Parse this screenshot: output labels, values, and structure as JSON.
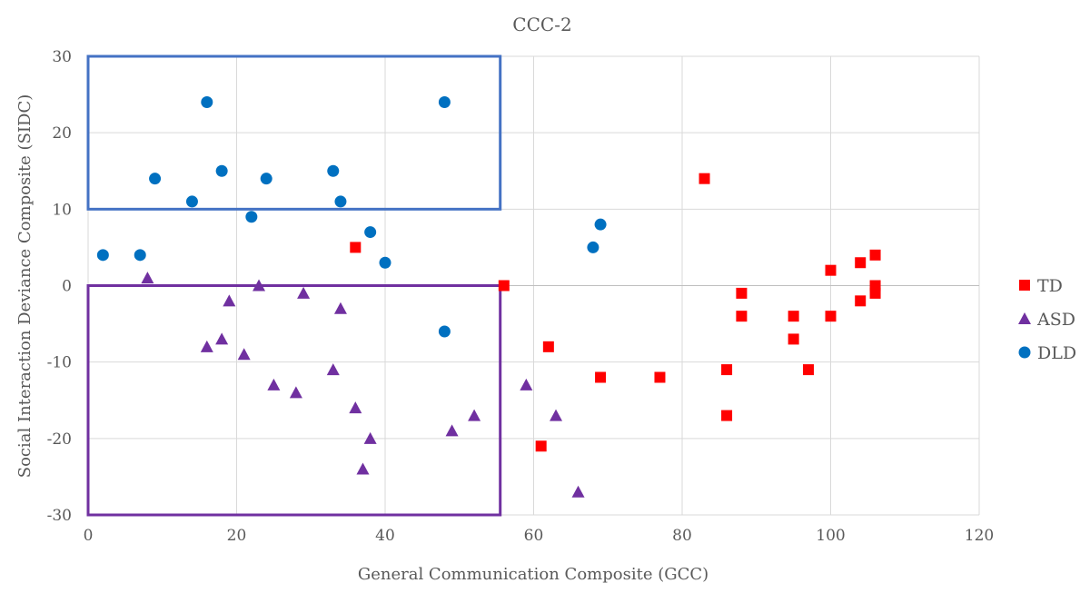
{
  "chart_data": {
    "type": "scatter",
    "title": "CCC-2",
    "xlabel": "General Communication Composite (GCC)",
    "ylabel": "Social Interaction Deviance Composite (SIDC)",
    "xlim": [
      0,
      120
    ],
    "ylim": [
      -30,
      30
    ],
    "xticks": [
      0,
      20,
      40,
      60,
      80,
      100,
      120
    ],
    "yticks": [
      -30,
      -20,
      -10,
      0,
      10,
      20,
      30
    ],
    "grid": true,
    "legend_position": "right",
    "series": [
      {
        "name": "TD",
        "marker": "square",
        "color": "#ff0000",
        "points": [
          [
            36,
            5
          ],
          [
            56,
            0
          ],
          [
            62,
            -8
          ],
          [
            61,
            -21
          ],
          [
            69,
            -12
          ],
          [
            77,
            -12
          ],
          [
            83,
            14
          ],
          [
            86,
            -11
          ],
          [
            86,
            -17
          ],
          [
            88,
            -1
          ],
          [
            88,
            -4
          ],
          [
            95,
            -4
          ],
          [
            95,
            -7
          ],
          [
            97,
            -11
          ],
          [
            100,
            2
          ],
          [
            100,
            -4
          ],
          [
            104,
            3
          ],
          [
            104,
            -2
          ],
          [
            106,
            4
          ],
          [
            106,
            0
          ],
          [
            106,
            -1
          ]
        ]
      },
      {
        "name": "ASD",
        "marker": "triangle",
        "color": "#7030a0",
        "points": [
          [
            8,
            1
          ],
          [
            16,
            -8
          ],
          [
            18,
            -7
          ],
          [
            19,
            -2
          ],
          [
            21,
            -9
          ],
          [
            23,
            0
          ],
          [
            25,
            -13
          ],
          [
            28,
            -14
          ],
          [
            29,
            -1
          ],
          [
            33,
            -11
          ],
          [
            34,
            -3
          ],
          [
            36,
            -16
          ],
          [
            37,
            -24
          ],
          [
            38,
            -20
          ],
          [
            49,
            -19
          ],
          [
            52,
            -17
          ],
          [
            59,
            -13
          ],
          [
            63,
            -17
          ],
          [
            66,
            -27
          ]
        ]
      },
      {
        "name": "DLD",
        "marker": "circle",
        "color": "#0070c0",
        "points": [
          [
            2,
            4
          ],
          [
            7,
            4
          ],
          [
            9,
            14
          ],
          [
            14,
            11
          ],
          [
            16,
            24
          ],
          [
            18,
            15
          ],
          [
            22,
            9
          ],
          [
            24,
            14
          ],
          [
            33,
            15
          ],
          [
            34,
            11
          ],
          [
            38,
            7
          ],
          [
            40,
            3
          ],
          [
            48,
            24
          ],
          [
            48,
            -6
          ],
          [
            68,
            5
          ],
          [
            69,
            8
          ]
        ]
      }
    ],
    "annotations": [
      {
        "type": "rect",
        "color": "#4472c4",
        "x": [
          0,
          55.5
        ],
        "y": [
          10,
          30
        ]
      },
      {
        "type": "rect",
        "color": "#7030a0",
        "x": [
          0,
          55.5
        ],
        "y": [
          -30,
          0
        ]
      }
    ]
  }
}
